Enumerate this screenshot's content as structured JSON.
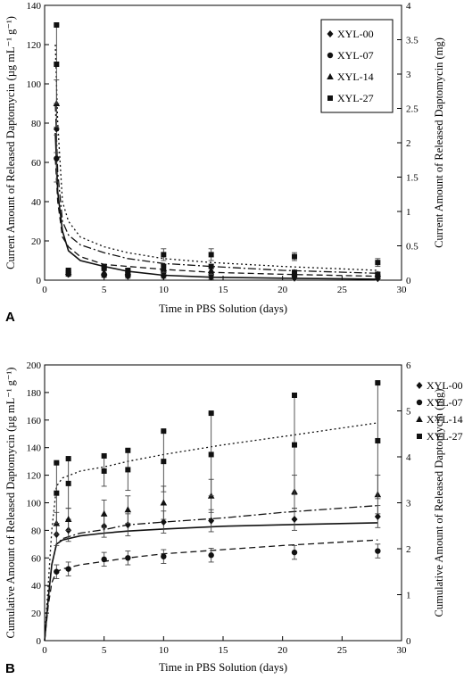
{
  "chart_data": [
    {
      "type": "scatter",
      "panel_label": "A",
      "xlabel": "Time in PBS Solution (days)",
      "ylabel": "Current Amount of Released Daptomycin (µg mL⁻¹ g⁻¹)",
      "y2label": "Current Amount of Released Daptomycin (mg)",
      "xlim": [
        0,
        30
      ],
      "ylim": [
        0,
        140
      ],
      "y2lim": [
        0,
        4
      ],
      "xticks": [
        "0",
        "5",
        "10",
        "15",
        "20",
        "25",
        "30"
      ],
      "yticks": [
        "0",
        "20",
        "40",
        "60",
        "80",
        "100",
        "120",
        "140"
      ],
      "y2ticks": [
        "0",
        "0.5",
        "1",
        "1.5",
        "2",
        "2.5",
        "3",
        "3.5",
        "4"
      ],
      "legend_position": "top-right",
      "grid": false,
      "series": [
        {
          "name": "XYL-00",
          "marker": "diamond",
          "line": "solid",
          "x": [
            1,
            2,
            5,
            7,
            10,
            14,
            21,
            28
          ],
          "y": [
            77,
            3,
            2.5,
            2.0,
            2.0,
            1.5,
            1.0,
            0.8
          ],
          "err": [
            12,
            1,
            1,
            1,
            1,
            1,
            1,
            1
          ]
        },
        {
          "name": "XYL-07",
          "marker": "circle",
          "line": "dashed",
          "x": [
            1,
            2,
            5,
            7,
            10,
            14,
            21,
            28
          ],
          "y": [
            62,
            3,
            2.5,
            2.5,
            4,
            3,
            2,
            2
          ],
          "err": [
            12,
            1,
            1,
            1,
            1,
            1,
            1,
            1
          ]
        },
        {
          "name": "XYL-14",
          "marker": "triangle",
          "line": "dashdot",
          "x": [
            1,
            2,
            5,
            7,
            10,
            14,
            21,
            28
          ],
          "y": [
            90,
            4,
            4,
            4,
            6,
            5,
            4,
            3
          ],
          "err": [
            12,
            1,
            1,
            1,
            2,
            2,
            1,
            1
          ]
        },
        {
          "name": "XYL-27",
          "marker": "square",
          "line": "dotted",
          "x": [
            1,
            2,
            5,
            7,
            10,
            14,
            21,
            28
          ],
          "y": [
            110,
            5,
            7,
            5,
            13,
            13,
            12,
            9
          ],
          "err": [
            20,
            1,
            1,
            1,
            3,
            3,
            2,
            2
          ]
        },
        {
          "name": "",
          "marker": "square",
          "line": "none",
          "x": [
            1,
            2,
            5,
            7,
            10,
            14,
            21,
            28
          ],
          "y": [
            130,
            4,
            6,
            4,
            7,
            7,
            4,
            3
          ],
          "err": [
            0,
            0,
            0,
            0,
            0,
            0,
            0,
            0
          ]
        }
      ],
      "fits": [
        {
          "series": "XYL-00",
          "style": "solid",
          "points": [
            [
              0.9,
              75
            ],
            [
              1.1,
              45
            ],
            [
              1.5,
              25
            ],
            [
              2,
              15
            ],
            [
              3,
              10
            ],
            [
              5,
              7
            ],
            [
              7,
              4.5
            ],
            [
              10,
              2.5
            ],
            [
              14,
              1.5
            ],
            [
              20,
              1
            ],
            [
              28,
              0.5
            ]
          ]
        },
        {
          "series": "XYL-07",
          "style": "dashed",
          "points": [
            [
              0.9,
              62
            ],
            [
              1.1,
              40
            ],
            [
              1.5,
              22
            ],
            [
              2,
              17
            ],
            [
              3,
              12
            ],
            [
              5,
              8
            ],
            [
              7,
              7
            ],
            [
              10,
              5.5
            ],
            [
              14,
              4
            ],
            [
              20,
              3
            ],
            [
              28,
              2
            ]
          ]
        },
        {
          "series": "XYL-14",
          "style": "dashdot",
          "points": [
            [
              0.9,
              90
            ],
            [
              1.1,
              55
            ],
            [
              1.5,
              30
            ],
            [
              2,
              23
            ],
            [
              3,
              18
            ],
            [
              5,
              14
            ],
            [
              7,
              11
            ],
            [
              10,
              8.5
            ],
            [
              14,
              7
            ],
            [
              20,
              5
            ],
            [
              28,
              3.5
            ]
          ]
        },
        {
          "series": "XYL-27",
          "style": "dotted",
          "points": [
            [
              0.9,
              120
            ],
            [
              1.1,
              80
            ],
            [
              1.5,
              40
            ],
            [
              2,
              30
            ],
            [
              3,
              22
            ],
            [
              5,
              17
            ],
            [
              7,
              14
            ],
            [
              10,
              11
            ],
            [
              14,
              9
            ],
            [
              20,
              7
            ],
            [
              28,
              5
            ]
          ]
        }
      ]
    },
    {
      "type": "scatter",
      "panel_label": "B",
      "xlabel": "Time in PBS Solution (days)",
      "ylabel": "Cumulative Amount of Released Daptomycin (µg mL⁻¹ g⁻¹)",
      "y2label": "Cumulative Amount of Released Daptomycin (mg)",
      "xlim": [
        0,
        30
      ],
      "ylim": [
        0,
        200
      ],
      "y2lim": [
        0,
        6
      ],
      "xticks": [
        "0",
        "5",
        "10",
        "15",
        "20",
        "25",
        "30"
      ],
      "yticks": [
        "0",
        "20",
        "40",
        "60",
        "80",
        "100",
        "120",
        "140",
        "160",
        "180",
        "200"
      ],
      "y2ticks": [
        "0",
        "1",
        "2",
        "3",
        "4",
        "5",
        "6"
      ],
      "legend_position": "right",
      "grid": false,
      "series": [
        {
          "name": "XYL-00",
          "marker": "diamond",
          "line": "solid",
          "x": [
            1,
            2,
            5,
            7,
            10,
            14,
            21,
            28
          ],
          "y": [
            77,
            80,
            83,
            84,
            86,
            87,
            88,
            90
          ],
          "err": [
            8,
            8,
            8,
            8,
            8,
            8,
            8,
            8
          ]
        },
        {
          "name": "XYL-07",
          "marker": "circle",
          "line": "dashed",
          "x": [
            1,
            2,
            5,
            7,
            10,
            14,
            21,
            28
          ],
          "y": [
            50,
            52,
            59,
            60,
            61,
            62,
            64,
            65
          ],
          "err": [
            5,
            5,
            5,
            5,
            5,
            5,
            5,
            5
          ]
        },
        {
          "name": "XYL-14",
          "marker": "triangle",
          "line": "dashdot",
          "x": [
            1,
            2,
            5,
            7,
            10,
            14,
            21,
            28
          ],
          "y": [
            85,
            88,
            92,
            95,
            100,
            105,
            108,
            106
          ],
          "err": [
            8,
            8,
            10,
            10,
            12,
            12,
            12,
            14
          ]
        },
        {
          "name": "XYL-27",
          "marker": "square",
          "line": "dotted",
          "x": [
            1,
            2,
            5,
            7,
            10,
            14,
            21,
            28
          ],
          "y": [
            107,
            114,
            123,
            124,
            130,
            135,
            142,
            145
          ],
          "err": [
            22,
            18,
            11,
            15,
            22,
            30,
            36,
            42
          ]
        },
        {
          "name": "",
          "marker": "square",
          "line": "none",
          "x": [
            1,
            2,
            5,
            7,
            10,
            14,
            21,
            28
          ],
          "y": [
            129,
            132,
            134,
            138,
            152,
            165,
            178,
            187
          ],
          "err": [
            0,
            0,
            0,
            0,
            0,
            0,
            0,
            0
          ]
        }
      ],
      "fits": [
        {
          "series": "XYL-00",
          "style": "solid",
          "points": [
            [
              0,
              0
            ],
            [
              0.3,
              30
            ],
            [
              0.6,
              55
            ],
            [
              1,
              70
            ],
            [
              1.5,
              73
            ],
            [
              3,
              76
            ],
            [
              5,
              78
            ],
            [
              7,
              79.5
            ],
            [
              10,
              81
            ],
            [
              15,
              83
            ],
            [
              20,
              84
            ],
            [
              28,
              85.5
            ]
          ]
        },
        {
          "series": "XYL-07",
          "style": "dashed",
          "points": [
            [
              0,
              0
            ],
            [
              0.3,
              25
            ],
            [
              0.6,
              42
            ],
            [
              1,
              50
            ],
            [
              1.5,
              52
            ],
            [
              3,
              55
            ],
            [
              5,
              57.5
            ],
            [
              7,
              60
            ],
            [
              10,
              63
            ],
            [
              15,
              66
            ],
            [
              20,
              69
            ],
            [
              28,
              73
            ]
          ]
        },
        {
          "series": "XYL-14",
          "style": "dashdot",
          "points": [
            [
              0,
              0
            ],
            [
              0.3,
              30
            ],
            [
              0.6,
              55
            ],
            [
              1,
              70
            ],
            [
              1.5,
              74
            ],
            [
              3,
              78
            ],
            [
              5,
              80.5
            ],
            [
              7,
              84
            ],
            [
              10,
              86
            ],
            [
              15,
              89
            ],
            [
              20,
              93
            ],
            [
              28,
              98
            ]
          ]
        },
        {
          "series": "XYL-27",
          "style": "dotted",
          "points": [
            [
              0,
              0
            ],
            [
              0.3,
              40
            ],
            [
              0.6,
              80
            ],
            [
              1,
              112
            ],
            [
              1.5,
              118
            ],
            [
              3,
              123
            ],
            [
              5,
              126
            ],
            [
              7,
              130
            ],
            [
              10,
              135
            ],
            [
              15,
              142
            ],
            [
              20,
              148
            ],
            [
              28,
              158
            ]
          ]
        }
      ]
    }
  ]
}
